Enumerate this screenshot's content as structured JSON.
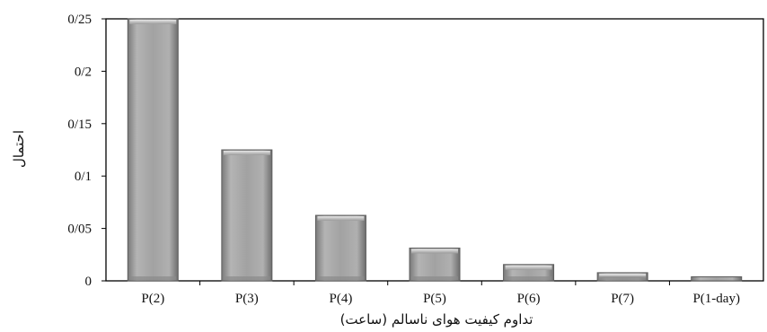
{
  "chart_data": {
    "type": "bar",
    "title": "",
    "xlabel": "تداوم کیفیت هوای ناسالم (ساعت)",
    "ylabel": "احتمال",
    "categories": [
      "P(2)",
      "P(3)",
      "P(4)",
      "P(5)",
      "P(6)",
      "P(7)",
      "P(1-day)"
    ],
    "values": [
      0.25,
      0.125,
      0.0625,
      0.0313,
      0.0156,
      0.0078,
      0.0039
    ],
    "ylim": [
      0,
      0.25
    ],
    "yticks": [
      0,
      0.05,
      0.1,
      0.15,
      0.2,
      0.25
    ],
    "ytick_labels": [
      "0",
      "0/05",
      "0/1",
      "0/15",
      "0/2",
      "0/25"
    ],
    "grid": false,
    "legend": "none",
    "colors": {
      "bar_fill": "#9e9e9e",
      "bar_edge": "#5c5c5c",
      "axis": "#000000"
    }
  }
}
